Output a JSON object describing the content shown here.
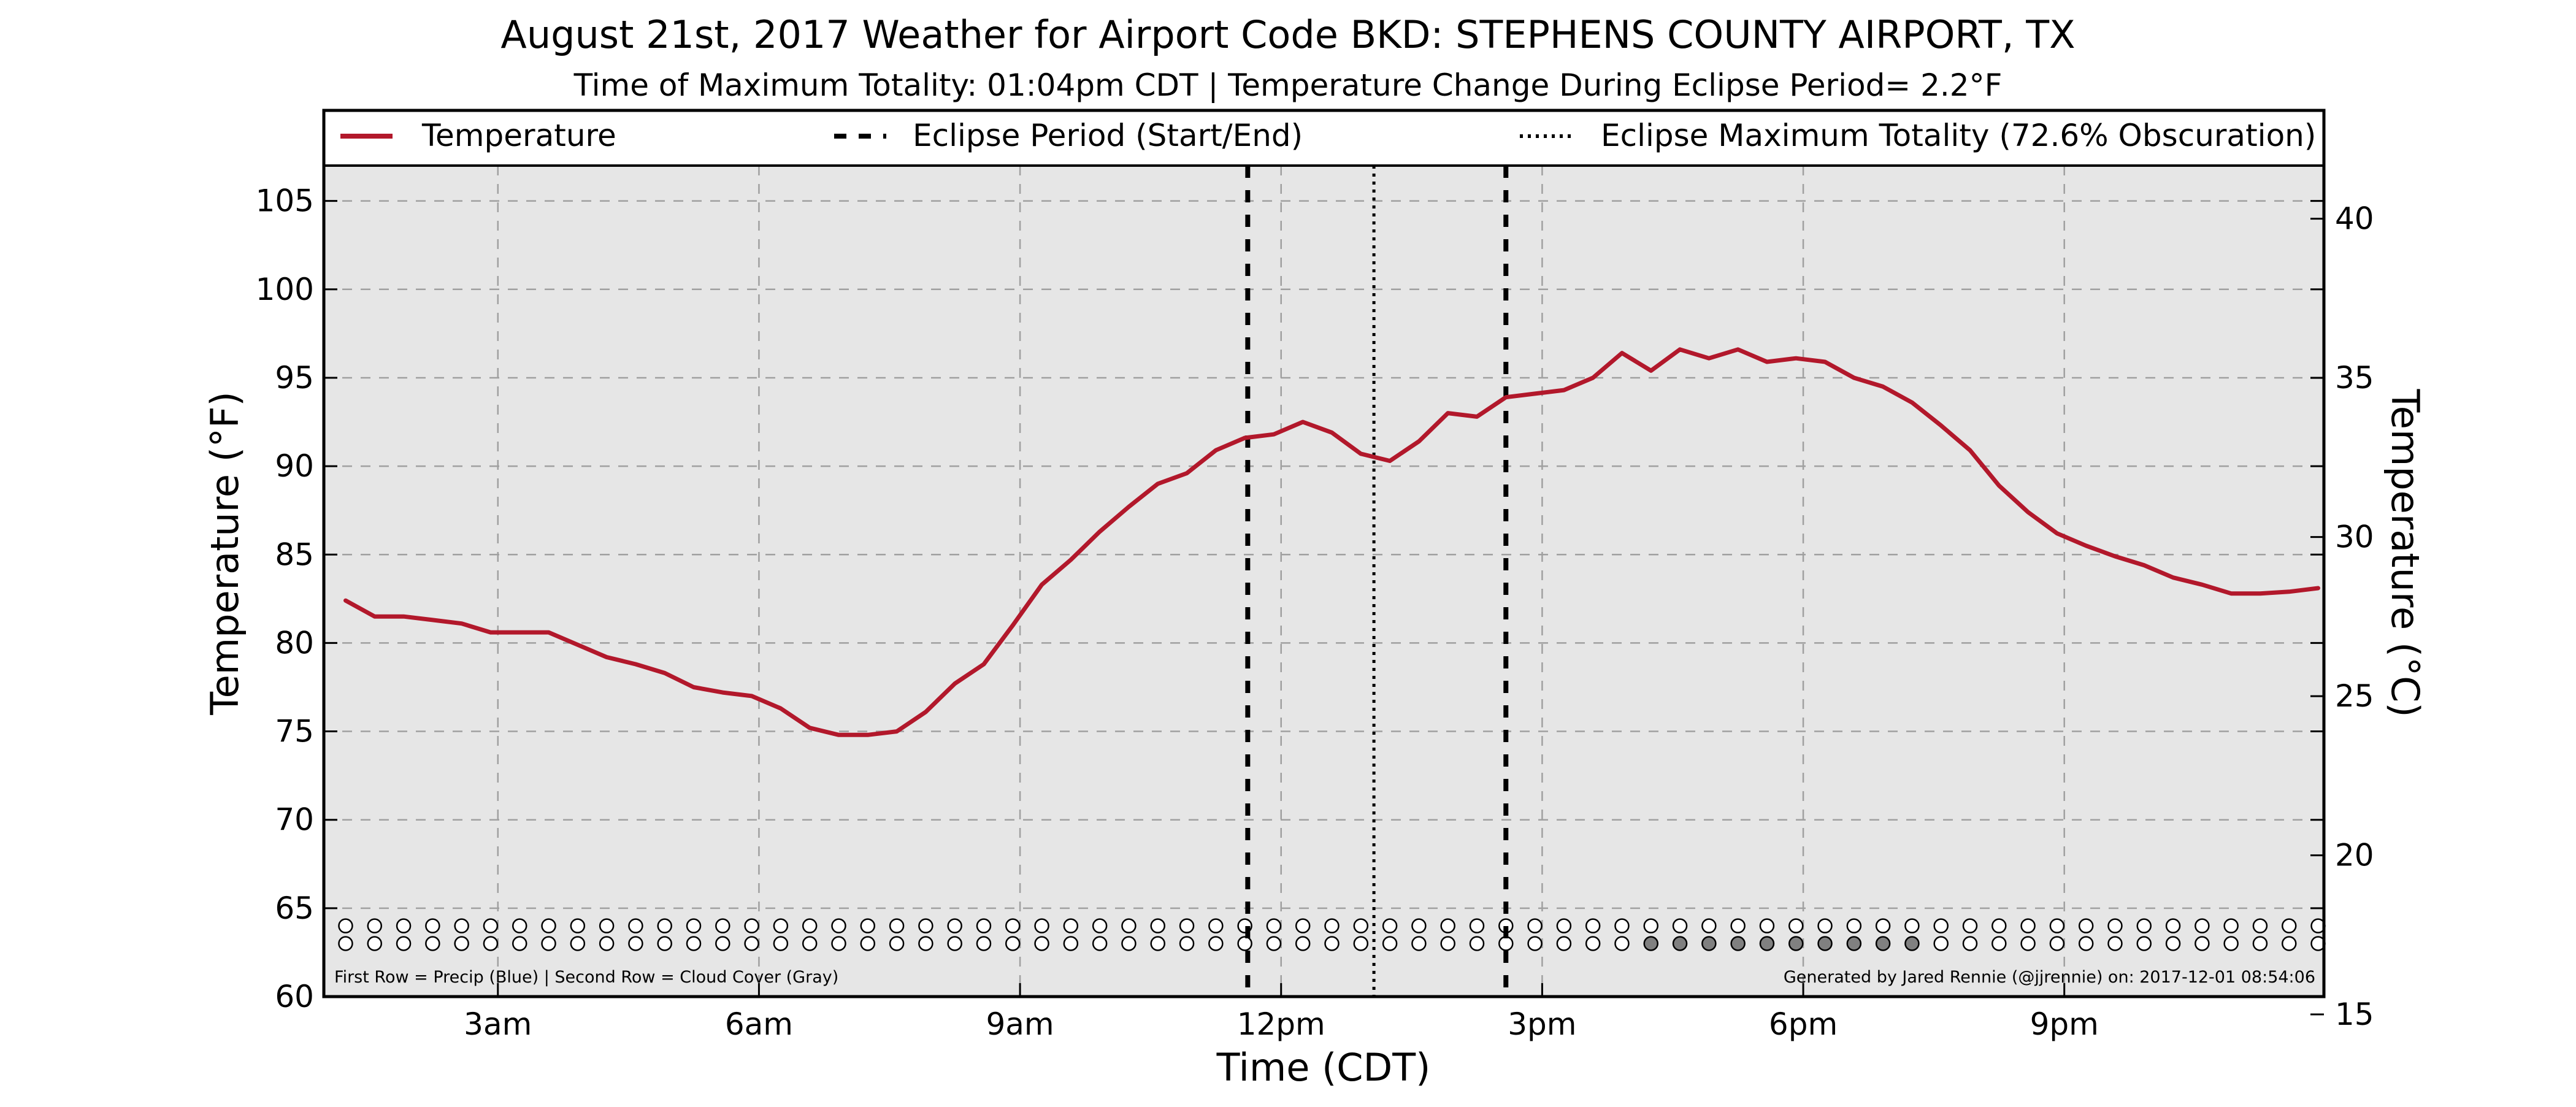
{
  "chart_data": {
    "type": "line",
    "title": "August 21st, 2017 Weather for Airport Code BKD: STEPHENS COUNTY AIRPORT, TX",
    "subtitle": "Time of Maximum Totality: 01:04pm CDT | Temperature Change During Eclipse Period= 2.2°F",
    "xlabel": "Time (CDT)",
    "ylabel_left": "Temperature (°F)",
    "ylabel_right": "Temperature (°C)",
    "xlim": [
      "2017-08-21 01:00",
      "2017-08-21 23:59"
    ],
    "ylim_left": [
      60,
      107
    ],
    "ylim_right": [
      15.56,
      41.67
    ],
    "x_ticks": [
      {
        "time": "2017-08-21 03:00",
        "label": "3am"
      },
      {
        "time": "2017-08-21 06:00",
        "label": "6am"
      },
      {
        "time": "2017-08-21 09:00",
        "label": "9am"
      },
      {
        "time": "2017-08-21 12:00",
        "label": "12pm"
      },
      {
        "time": "2017-08-21 15:00",
        "label": "3pm"
      },
      {
        "time": "2017-08-21 18:00",
        "label": "6pm"
      },
      {
        "time": "2017-08-21 21:00",
        "label": "9pm"
      }
    ],
    "y_ticks_left": [
      "60",
      "65",
      "70",
      "75",
      "80",
      "85",
      "90",
      "95",
      "100",
      "105"
    ],
    "y_ticks_right": [
      "15",
      "20",
      "25",
      "30",
      "35",
      "40"
    ],
    "grid": true,
    "legend": {
      "placement": "top",
      "entries": [
        {
          "label": "Temperature",
          "style": "solid",
          "color": "#b2182b"
        },
        {
          "label": "Eclipse Period (Start/End)",
          "style": "dashed",
          "color": "#000000"
        },
        {
          "label": "Eclipse Maximum Totality (72.6% Obscuration)",
          "style": "dotted",
          "color": "#000000"
        }
      ]
    },
    "series": [
      {
        "name": "Temperature",
        "color": "#b2182b",
        "x": [
          "2017-08-21 01:15",
          "2017-08-21 01:35",
          "2017-08-21 01:55",
          "2017-08-21 02:15",
          "2017-08-21 02:35",
          "2017-08-21 02:55",
          "2017-08-21 03:15",
          "2017-08-21 03:35",
          "2017-08-21 03:55",
          "2017-08-21 04:15",
          "2017-08-21 04:35",
          "2017-08-21 04:55",
          "2017-08-21 05:15",
          "2017-08-21 05:35",
          "2017-08-21 05:55",
          "2017-08-21 06:15",
          "2017-08-21 06:35",
          "2017-08-21 06:55",
          "2017-08-21 07:15",
          "2017-08-21 07:35",
          "2017-08-21 07:55",
          "2017-08-21 08:15",
          "2017-08-21 08:35",
          "2017-08-21 08:55",
          "2017-08-21 09:15",
          "2017-08-21 09:35",
          "2017-08-21 09:55",
          "2017-08-21 10:15",
          "2017-08-21 10:35",
          "2017-08-21 10:55",
          "2017-08-21 11:15",
          "2017-08-21 11:35",
          "2017-08-21 11:55",
          "2017-08-21 12:15",
          "2017-08-21 12:35",
          "2017-08-21 12:55",
          "2017-08-21 13:15",
          "2017-08-21 13:35",
          "2017-08-21 13:55",
          "2017-08-21 14:15",
          "2017-08-21 14:35",
          "2017-08-21 14:55",
          "2017-08-21 15:15",
          "2017-08-21 15:35",
          "2017-08-21 15:55",
          "2017-08-21 16:15",
          "2017-08-21 16:35",
          "2017-08-21 16:55",
          "2017-08-21 17:15",
          "2017-08-21 17:35",
          "2017-08-21 17:55",
          "2017-08-21 18:15",
          "2017-08-21 18:35",
          "2017-08-21 18:55",
          "2017-08-21 19:15",
          "2017-08-21 19:35",
          "2017-08-21 19:55",
          "2017-08-21 20:15",
          "2017-08-21 20:35",
          "2017-08-21 20:55",
          "2017-08-21 21:15",
          "2017-08-21 21:35",
          "2017-08-21 21:55",
          "2017-08-21 22:15",
          "2017-08-21 22:35",
          "2017-08-21 22:55",
          "2017-08-21 23:15",
          "2017-08-21 23:35",
          "2017-08-21 23:55"
        ],
        "values": [
          82.4,
          81.5,
          81.5,
          81.3,
          81.1,
          80.6,
          80.6,
          80.6,
          79.9,
          79.2,
          78.8,
          78.3,
          77.5,
          77.2,
          77.0,
          76.3,
          75.2,
          74.8,
          74.8,
          75.0,
          76.1,
          77.7,
          78.8,
          81.0,
          83.3,
          84.7,
          86.3,
          87.7,
          89.0,
          89.6,
          90.9,
          91.6,
          91.8,
          92.5,
          91.9,
          90.7,
          90.3,
          91.4,
          93.0,
          92.8,
          93.9,
          94.1,
          94.3,
          95.0,
          96.4,
          95.4,
          96.6,
          96.1,
          96.6,
          95.9,
          96.1,
          95.9,
          95.0,
          94.5,
          93.6,
          92.3,
          90.9,
          88.9,
          87.4,
          86.2,
          85.5,
          84.9,
          84.4,
          83.7,
          83.3,
          82.8,
          82.8,
          82.9,
          83.1
        ]
      }
    ],
    "eclipse_start": "2017-08-21 11:37",
    "eclipse_max": "2017-08-21 13:04",
    "eclipse_end": "2017-08-21 14:35",
    "indicator_rows": {
      "row_values": [
        64,
        63
      ],
      "times": [
        "2017-08-21 01:15",
        "2017-08-21 01:35",
        "2017-08-21 01:55",
        "2017-08-21 02:15",
        "2017-08-21 02:35",
        "2017-08-21 02:55",
        "2017-08-21 03:15",
        "2017-08-21 03:35",
        "2017-08-21 03:55",
        "2017-08-21 04:15",
        "2017-08-21 04:35",
        "2017-08-21 04:55",
        "2017-08-21 05:15",
        "2017-08-21 05:35",
        "2017-08-21 05:55",
        "2017-08-21 06:15",
        "2017-08-21 06:35",
        "2017-08-21 06:55",
        "2017-08-21 07:15",
        "2017-08-21 07:35",
        "2017-08-21 07:55",
        "2017-08-21 08:15",
        "2017-08-21 08:35",
        "2017-08-21 08:55",
        "2017-08-21 09:15",
        "2017-08-21 09:35",
        "2017-08-21 09:55",
        "2017-08-21 10:15",
        "2017-08-21 10:35",
        "2017-08-21 10:55",
        "2017-08-21 11:15",
        "2017-08-21 11:35",
        "2017-08-21 11:55",
        "2017-08-21 12:15",
        "2017-08-21 12:35",
        "2017-08-21 12:55",
        "2017-08-21 13:15",
        "2017-08-21 13:35",
        "2017-08-21 13:55",
        "2017-08-21 14:15",
        "2017-08-21 14:35",
        "2017-08-21 14:55",
        "2017-08-21 15:15",
        "2017-08-21 15:35",
        "2017-08-21 15:55",
        "2017-08-21 16:15",
        "2017-08-21 16:35",
        "2017-08-21 16:55",
        "2017-08-21 17:15",
        "2017-08-21 17:35",
        "2017-08-21 17:55",
        "2017-08-21 18:15",
        "2017-08-21 18:35",
        "2017-08-21 18:55",
        "2017-08-21 19:15",
        "2017-08-21 19:35",
        "2017-08-21 19:55",
        "2017-08-21 20:15",
        "2017-08-21 20:35",
        "2017-08-21 20:55",
        "2017-08-21 21:15",
        "2017-08-21 21:35",
        "2017-08-21 21:55",
        "2017-08-21 22:15",
        "2017-08-21 22:35",
        "2017-08-21 22:55",
        "2017-08-21 23:15",
        "2017-08-21 23:35",
        "2017-08-21 23:55"
      ],
      "precip": [
        0,
        0,
        0,
        0,
        0,
        0,
        0,
        0,
        0,
        0,
        0,
        0,
        0,
        0,
        0,
        0,
        0,
        0,
        0,
        0,
        0,
        0,
        0,
        0,
        0,
        0,
        0,
        0,
        0,
        0,
        0,
        0,
        0,
        0,
        0,
        0,
        0,
        0,
        0,
        0,
        0,
        0,
        0,
        0,
        0,
        0,
        0,
        0,
        0,
        0,
        0,
        0,
        0,
        0,
        0,
        0,
        0,
        0,
        0,
        0,
        0,
        0,
        0,
        0,
        0,
        0,
        0,
        0,
        0
      ],
      "cloud_cover": [
        0,
        0,
        0,
        0,
        0,
        0,
        0,
        0,
        0,
        0,
        0,
        0,
        0,
        0,
        0,
        0,
        0,
        0,
        0,
        0,
        0,
        0,
        0,
        0,
        0,
        0,
        0,
        0,
        0,
        0,
        0,
        0,
        0,
        0,
        0,
        0,
        0,
        0,
        0,
        0,
        0,
        0,
        0,
        0,
        0,
        1,
        1,
        1,
        1,
        1,
        1,
        1,
        1,
        1,
        1,
        0,
        0,
        0,
        0,
        0,
        0,
        0,
        0,
        0,
        0,
        0,
        0,
        0,
        0
      ],
      "empty_color": "#ffffff",
      "precip_color": "#2166ac",
      "cloud_color": "#808080"
    },
    "footnote_left": "First Row = Precip (Blue) | Second Row = Cloud Cover (Gray)",
    "footnote_right": "Generated by Jared Rennie (@jjrennie) on: 2017-12-01 08:54:06",
    "colors": {
      "plot_background": "#e6e6e6",
      "grid": "#a0a0a0",
      "eclipse_lines": "#000000"
    }
  }
}
